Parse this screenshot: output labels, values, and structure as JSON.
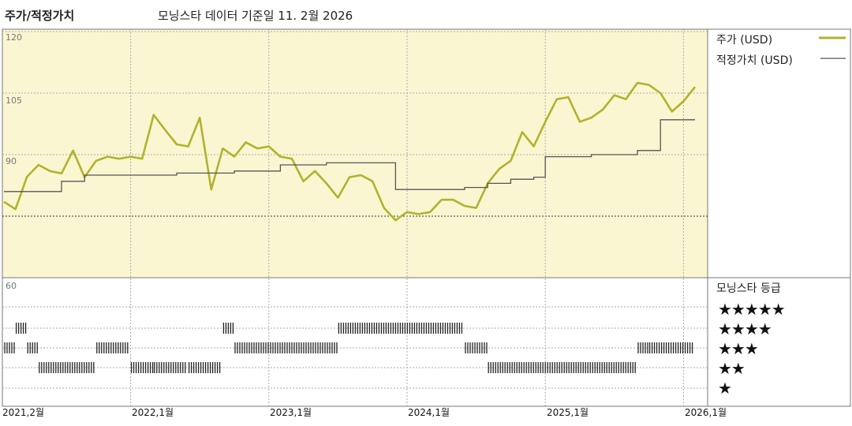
{
  "header": {
    "title": "주가/적정가치",
    "subtitle": "모닝스타 데이터 기준일 11. 2월 2026"
  },
  "chart_data": {
    "type": "line",
    "title": "주가/적정가치",
    "subtitle": "모닝스타 데이터 기준일 11. 2월 2026",
    "x_ticks": [
      "2021,2월",
      "2022,1월",
      "2023,1월",
      "2024,1월",
      "2025,1월",
      "2026,1월"
    ],
    "y_ticks_price": [
      "120",
      "105",
      "90"
    ],
    "y_tick_rating": "60",
    "grid": true,
    "legend_position": "right",
    "legend": [
      {
        "label": "주가 (USD)",
        "color": "#b2b22d"
      },
      {
        "label": "적정가치 (USD)",
        "color": "#555555"
      }
    ],
    "series": [
      {
        "name": "주가 (USD)",
        "color": "#b2b22d",
        "x": [
          "2021-02",
          "2021-03",
          "2021-04",
          "2021-05",
          "2021-06",
          "2021-07",
          "2021-08",
          "2021-09",
          "2021-10",
          "2021-11",
          "2021-12",
          "2022-01",
          "2022-02",
          "2022-03",
          "2022-04",
          "2022-05",
          "2022-06",
          "2022-07",
          "2022-08",
          "2022-09",
          "2022-10",
          "2022-11",
          "2022-12",
          "2023-01",
          "2023-02",
          "2023-03",
          "2023-04",
          "2023-05",
          "2023-06",
          "2023-07",
          "2023-08",
          "2023-09",
          "2023-10",
          "2023-11",
          "2023-12",
          "2024-01",
          "2024-02",
          "2024-03",
          "2024-04",
          "2024-05",
          "2024-06",
          "2024-07",
          "2024-08",
          "2024-09",
          "2024-10",
          "2024-11",
          "2024-12",
          "2025-01",
          "2025-02",
          "2025-03",
          "2025-04",
          "2025-05",
          "2025-06",
          "2025-07",
          "2025-08",
          "2025-09",
          "2025-10",
          "2025-11",
          "2025-12",
          "2026-01",
          "2026-02"
        ],
        "values": [
          78.5,
          76.7,
          84.6,
          87.5,
          86.0,
          85.4,
          91.0,
          84.5,
          88.5,
          89.5,
          89.0,
          89.5,
          89.0,
          99.7,
          96.0,
          92.5,
          92.0,
          99.0,
          81.5,
          91.5,
          89.5,
          93.0,
          91.5,
          92.0,
          89.5,
          89.0,
          83.5,
          86.0,
          83.0,
          79.5,
          84.5,
          85.0,
          83.5,
          77.0,
          74.0,
          76.0,
          75.5,
          76.0,
          79.0,
          79.0,
          77.5,
          77.0,
          83.0,
          86.5,
          88.5,
          95.5,
          92.0,
          98.0,
          103.5,
          104.0,
          98.0,
          99.0,
          101.0,
          104.5,
          103.5,
          107.5,
          107.0,
          105.0,
          100.5,
          103.0,
          106.5
        ]
      },
      {
        "name": "적정가치 (USD)",
        "color": "#555555",
        "x": [
          "2021-02",
          "2021-07",
          "2021-09",
          "2022-05",
          "2022-10",
          "2023-02",
          "2023-06",
          "2023-12",
          "2024-06",
          "2024-08",
          "2024-10",
          "2024-12",
          "2025-01",
          "2025-05",
          "2025-09",
          "2025-11",
          "2026-02"
        ],
        "values": [
          81.0,
          83.5,
          85.0,
          85.5,
          86.0,
          87.5,
          88.0,
          81.5,
          82.0,
          83.0,
          84.0,
          84.5,
          89.5,
          90.0,
          91.0,
          98.5,
          98.5
        ]
      }
    ],
    "rating_panel": {
      "title": "모닝스타 등급",
      "levels": [
        "★★★★★",
        "★★★★",
        "★★★",
        "★★",
        "★"
      ],
      "periods": [
        {
          "start": "2021-02",
          "end": "2021-03",
          "stars": 3
        },
        {
          "start": "2021-03",
          "end": "2021-04",
          "stars": 4
        },
        {
          "start": "2021-04",
          "end": "2021-05",
          "stars": 3
        },
        {
          "start": "2021-05",
          "end": "2021-10",
          "stars": 2
        },
        {
          "start": "2021-10",
          "end": "2022-01",
          "stars": 3
        },
        {
          "start": "2022-01",
          "end": "2022-03",
          "stars": 2
        },
        {
          "start": "2022-03",
          "end": "2022-06",
          "stars": 2
        },
        {
          "start": "2022-06",
          "end": "2022-09",
          "stars": 2
        },
        {
          "start": "2022-09",
          "end": "2022-10",
          "stars": 4
        },
        {
          "start": "2022-10",
          "end": "2023-07",
          "stars": 3
        },
        {
          "start": "2023-07",
          "end": "2024-06",
          "stars": 4
        },
        {
          "start": "2024-06",
          "end": "2024-08",
          "stars": 3
        },
        {
          "start": "2024-08",
          "end": "2025-09",
          "stars": 2
        },
        {
          "start": "2025-09",
          "end": "2025-10",
          "stars": 3
        },
        {
          "start": "2025-10",
          "end": "2026-02",
          "stars": 3
        }
      ]
    }
  }
}
